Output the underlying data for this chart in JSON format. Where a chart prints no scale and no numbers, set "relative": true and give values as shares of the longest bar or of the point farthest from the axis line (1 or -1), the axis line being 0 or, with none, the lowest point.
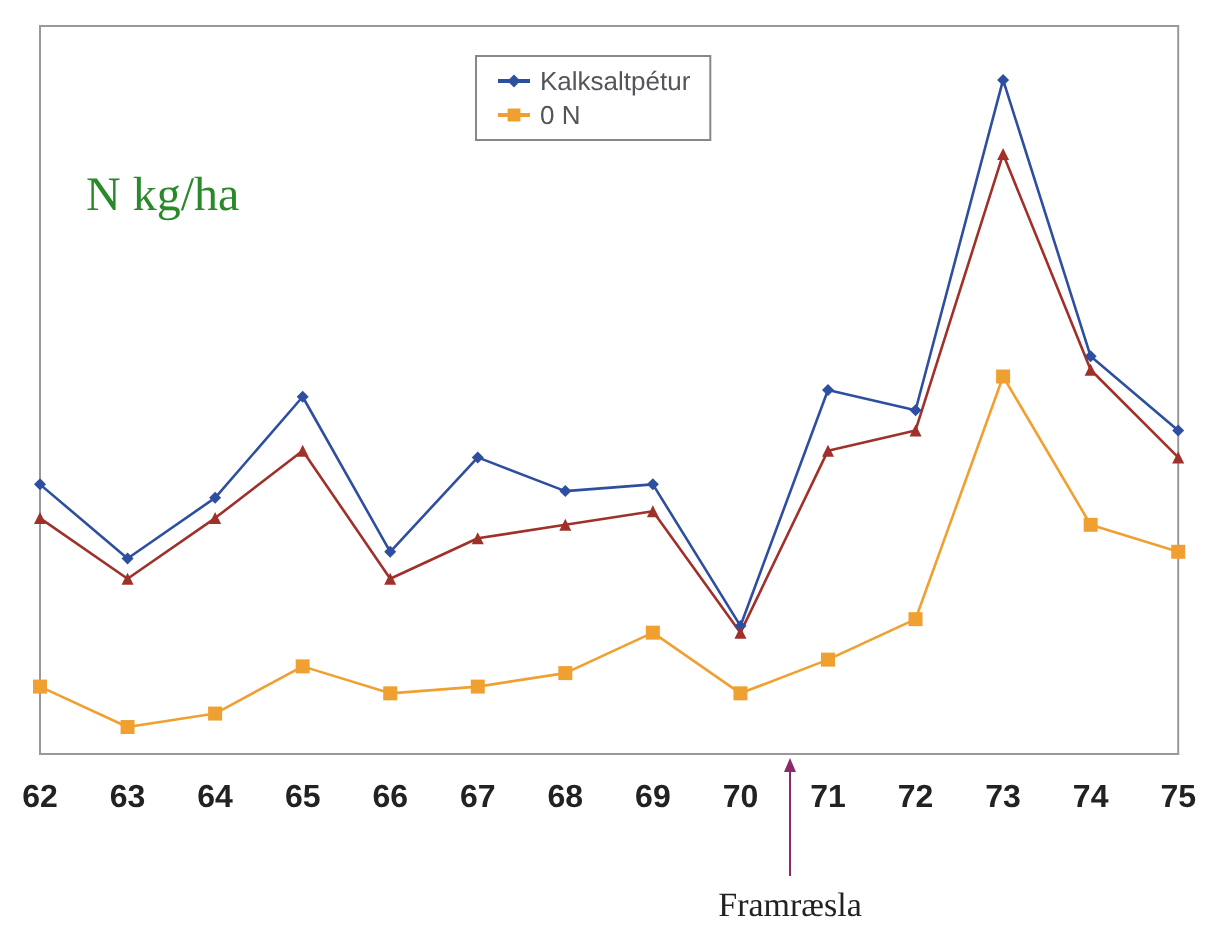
{
  "chart_data": {
    "type": "line",
    "relative": true,
    "ylabel": "N kg/ha",
    "categories": [
      "62",
      "63",
      "64",
      "65",
      "66",
      "67",
      "68",
      "69",
      "70",
      "71",
      "72",
      "73",
      "74",
      "75"
    ],
    "series": [
      {
        "name": "Kalksaltpétur",
        "color": "#2e4fa0",
        "marker": "diamond",
        "values": [
          0.4,
          0.29,
          0.38,
          0.53,
          0.3,
          0.44,
          0.39,
          0.4,
          0.19,
          0.54,
          0.51,
          1.0,
          0.59,
          0.48
        ]
      },
      {
        "color": "#a0302a",
        "marker": "triangle",
        "values": [
          0.35,
          0.26,
          0.35,
          0.45,
          0.26,
          0.32,
          0.34,
          0.36,
          0.18,
          0.45,
          0.48,
          0.89,
          0.57,
          0.44
        ]
      },
      {
        "name": "0 N",
        "color": "#f0a030",
        "marker": "square",
        "values": [
          0.1,
          0.04,
          0.06,
          0.13,
          0.09,
          0.1,
          0.12,
          0.18,
          0.09,
          0.14,
          0.2,
          0.56,
          0.34,
          0.3
        ]
      }
    ],
    "legend": "top",
    "annotations": [
      "Framræsla"
    ]
  }
}
